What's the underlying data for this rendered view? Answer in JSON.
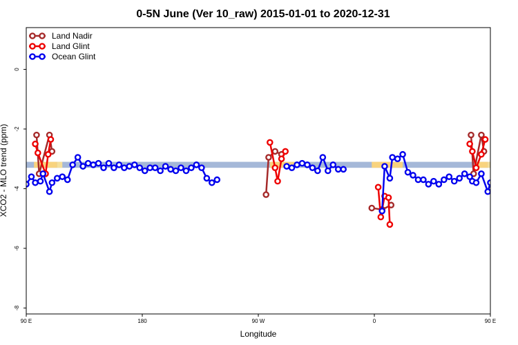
{
  "chart_data": {
    "type": "line",
    "title": "0-5N June (Ver 10_raw)   2015-01-01 to 2020-12-31",
    "xlabel": "Longitude",
    "ylabel": "XCO2 - MLO trend (ppm)",
    "xlim": [
      -90,
      270
    ],
    "ylim": [
      -8.2,
      1.4
    ],
    "x_ticks": [
      {
        "value": -90,
        "label": "90 E"
      },
      {
        "value": 0,
        "label": "180"
      },
      {
        "value": 90,
        "label": "90 W"
      },
      {
        "value": 180,
        "label": "0"
      },
      {
        "value": 270,
        "label": "90 E"
      },
      {
        "value": 360,
        "label": "180"
      }
    ],
    "y_ticks": [
      {
        "value": 0,
        "label": "0"
      },
      {
        "value": -2,
        "label": "-2"
      },
      {
        "value": -4,
        "label": "-4"
      },
      {
        "value": -6,
        "label": "-6"
      },
      {
        "value": -8,
        "label": "-8"
      }
    ],
    "grid": false,
    "legend_position": "top-left",
    "bands": [
      {
        "x": [
          -90,
          270
        ],
        "y": [
          -3.3,
          -3.1
        ],
        "color": "#a5b8d8"
      },
      {
        "x": [
          -84,
          -66
        ],
        "y": [
          -3.3,
          -3.1
        ],
        "color": "#f8d37e"
      },
      {
        "x": [
          -66,
          -62
        ],
        "y": [
          -3.3,
          -3.1
        ],
        "color": "#f5df9a"
      },
      {
        "x": [
          99,
          118
        ],
        "y": [
          -3.3,
          -3.1
        ],
        "color": "#f8d37e"
      },
      {
        "x": [
          178,
          202
        ],
        "y": [
          -3.3,
          -3.1
        ],
        "color": "#f8d37e"
      },
      {
        "x": [
          258,
          268
        ],
        "y": [
          -3.3,
          -3.1
        ],
        "color": "#f8d37e"
      },
      {
        "x": [
          268,
          270
        ],
        "y": [
          -3.3,
          -3.1
        ],
        "color": "#f5df9a"
      }
    ],
    "series": [
      {
        "name": "Land Nadir",
        "color": "#a52a2a",
        "segments": [
          [
            [
              -82,
              -2.2
            ],
            [
              -80,
              -3.5
            ],
            [
              -72,
              -2.2
            ],
            [
              -70,
              -2.75
            ]
          ],
          [
            [
              96,
              -4.2
            ],
            [
              98,
              -2.95
            ],
            [
              103,
              -2.75
            ],
            [
              108,
              -2.85
            ]
          ],
          [
            [
              178,
              -4.65
            ],
            [
              186,
              -4.7
            ],
            [
              193,
              -4.55
            ]
          ],
          [
            [
              255,
              -2.2
            ],
            [
              257,
              -3.5
            ],
            [
              263,
              -2.2
            ],
            [
              265,
              -2.75
            ]
          ]
        ]
      },
      {
        "name": "Land Glint",
        "color": "#ee0000",
        "segments": [
          [
            [
              -83,
              -2.5
            ],
            [
              -81,
              -2.8
            ],
            [
              -75,
              -3.5
            ],
            [
              -73,
              -2.85
            ],
            [
              -71,
              -2.35
            ]
          ],
          [
            [
              99,
              -2.45
            ],
            [
              103,
              -3.3
            ],
            [
              105,
              -3.75
            ],
            [
              108,
              -3.0
            ],
            [
              111,
              -2.75
            ]
          ],
          [
            [
              183,
              -3.95
            ],
            [
              185,
              -4.95
            ],
            [
              188,
              -4.25
            ],
            [
              191,
              -4.3
            ],
            [
              192,
              -5.2
            ]
          ],
          [
            [
              254,
              -2.5
            ],
            [
              256,
              -2.75
            ],
            [
              259,
              -3.3
            ],
            [
              263,
              -2.85
            ],
            [
              266,
              -2.35
            ]
          ]
        ]
      },
      {
        "name": "Ocean Glint",
        "color": "#0000ee",
        "segments": [
          [
            [
              -90,
              -3.85
            ],
            [
              -86,
              -3.6
            ],
            [
              -83,
              -3.8
            ],
            [
              -79,
              -3.75
            ],
            [
              -77,
              -3.5
            ],
            [
              -72,
              -4.1
            ],
            [
              -70,
              -3.8
            ],
            [
              -66,
              -3.65
            ],
            [
              -62,
              -3.6
            ],
            [
              -58,
              -3.7
            ],
            [
              -54,
              -3.2
            ],
            [
              -50,
              -2.95
            ],
            [
              -46,
              -3.25
            ],
            [
              -42,
              -3.15
            ],
            [
              -38,
              -3.2
            ],
            [
              -34,
              -3.15
            ],
            [
              -30,
              -3.3
            ],
            [
              -26,
              -3.15
            ],
            [
              -22,
              -3.3
            ],
            [
              -18,
              -3.2
            ],
            [
              -14,
              -3.3
            ],
            [
              -10,
              -3.25
            ],
            [
              -6,
              -3.2
            ],
            [
              -2,
              -3.3
            ],
            [
              2,
              -3.4
            ],
            [
              6,
              -3.3
            ],
            [
              10,
              -3.3
            ],
            [
              14,
              -3.4
            ],
            [
              18,
              -3.25
            ],
            [
              22,
              -3.35
            ],
            [
              26,
              -3.4
            ],
            [
              30,
              -3.3
            ],
            [
              34,
              -3.4
            ],
            [
              38,
              -3.3
            ],
            [
              42,
              -3.2
            ],
            [
              46,
              -3.3
            ],
            [
              50,
              -3.65
            ],
            [
              54,
              -3.8
            ],
            [
              58,
              -3.7
            ]
          ],
          [
            [
              112,
              -3.25
            ],
            [
              116,
              -3.3
            ],
            [
              120,
              -3.2
            ],
            [
              124,
              -3.15
            ],
            [
              128,
              -3.2
            ],
            [
              132,
              -3.3
            ],
            [
              136,
              -3.4
            ],
            [
              140,
              -2.95
            ],
            [
              144,
              -3.4
            ],
            [
              148,
              -3.2
            ],
            [
              152,
              -3.35
            ],
            [
              156,
              -3.35
            ]
          ],
          [
            [
              186,
              -4.75
            ],
            [
              188,
              -3.25
            ],
            [
              192,
              -3.65
            ],
            [
              194,
              -2.95
            ],
            [
              198,
              -3.0
            ],
            [
              202,
              -2.85
            ],
            [
              206,
              -3.45
            ],
            [
              210,
              -3.55
            ],
            [
              214,
              -3.7
            ],
            [
              218,
              -3.7
            ],
            [
              222,
              -3.85
            ],
            [
              226,
              -3.75
            ],
            [
              230,
              -3.85
            ],
            [
              234,
              -3.7
            ],
            [
              238,
              -3.6
            ],
            [
              242,
              -3.75
            ],
            [
              246,
              -3.65
            ],
            [
              250,
              -3.5
            ],
            [
              254,
              -3.6
            ],
            [
              256,
              -3.75
            ],
            [
              259,
              -3.8
            ],
            [
              263,
              -3.5
            ],
            [
              268,
              -4.1
            ],
            [
              270,
              -3.8
            ],
            [
              274,
              -3.65
            ],
            [
              278,
              -3.6
            ],
            [
              282,
              -3.7
            ],
            [
              286,
              -3.2
            ],
            [
              290,
              -2.95
            ],
            [
              294,
              -3.25
            ],
            [
              298,
              -3.15
            ],
            [
              302,
              -3.2
            ],
            [
              306,
              -3.2
            ],
            [
              310,
              -3.3
            ],
            [
              314,
              -3.15
            ]
          ]
        ]
      }
    ]
  }
}
